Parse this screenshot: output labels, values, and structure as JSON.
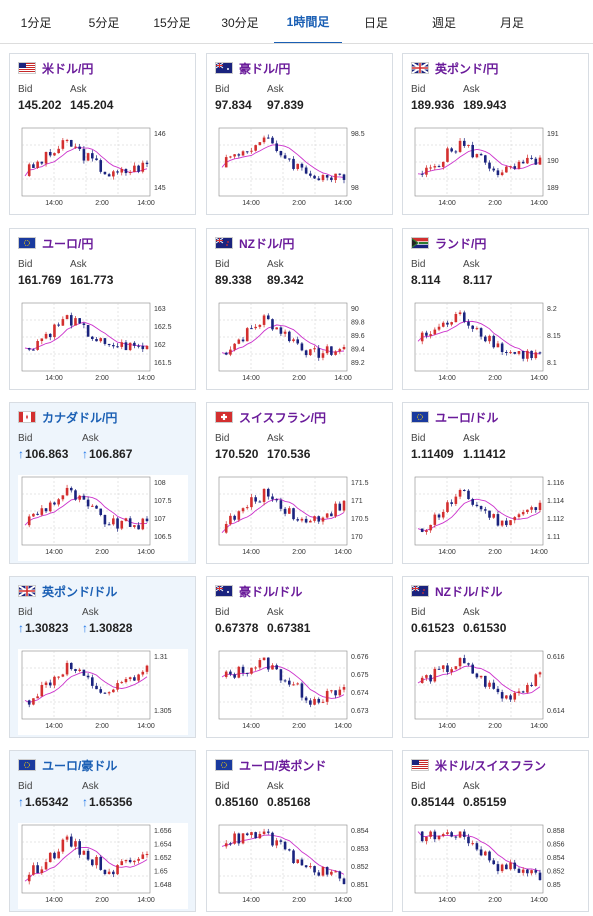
{
  "tabs": [
    {
      "label": "1分足",
      "active": false
    },
    {
      "label": "5分足",
      "active": false
    },
    {
      "label": "15分足",
      "active": false
    },
    {
      "label": "30分足",
      "active": false
    },
    {
      "label": "1時間足",
      "active": true
    },
    {
      "label": "日足",
      "active": false
    },
    {
      "label": "週足",
      "active": false
    },
    {
      "label": "月足",
      "active": false
    }
  ],
  "bid_label": "Bid",
  "ask_label": "Ask",
  "x_ticks": [
    "14:00",
    "2:00",
    "14:00"
  ],
  "colors": {
    "up": "#d32f2f",
    "down": "#1a237e",
    "ma": "#cc33cc",
    "ma2": "#29b6f6"
  },
  "cards": [
    {
      "pair": "米ドル/円",
      "flags": [
        "us",
        "jp"
      ],
      "bid": "145.202",
      "ask": "145.204",
      "arrow": false,
      "highlight": false,
      "y_ticks": [
        "146",
        "145"
      ],
      "chart_data": {
        "type": "candlestick",
        "start": 145.0,
        "end": 145.2,
        "peak": 145.9,
        "trough": 144.6
      }
    },
    {
      "pair": "豪ドル/円",
      "flags": [
        "au",
        "jp"
      ],
      "bid": "97.834",
      "ask": "97.839",
      "arrow": false,
      "highlight": false,
      "y_ticks": [
        "98.5",
        "98"
      ],
      "chart_data": {
        "type": "candlestick",
        "start": 98.1,
        "end": 97.83,
        "peak": 98.5,
        "trough": 97.7
      }
    },
    {
      "pair": "英ポンド/円",
      "flags": [
        "gb",
        "jp"
      ],
      "bid": "189.936",
      "ask": "189.943",
      "arrow": false,
      "highlight": false,
      "y_ticks": [
        "191",
        "190",
        "189"
      ],
      "chart_data": {
        "type": "candlestick",
        "start": 189.4,
        "end": 189.94,
        "peak": 190.6,
        "trough": 189.1
      }
    },
    {
      "pair": "ユーロ/円",
      "flags": [
        "eu",
        "jp"
      ],
      "bid": "161.769",
      "ask": "161.773",
      "arrow": false,
      "highlight": false,
      "y_ticks": [
        "163",
        "162.5",
        "162",
        "161.5"
      ],
      "chart_data": {
        "type": "candlestick",
        "start": 161.7,
        "end": 161.77,
        "peak": 162.6,
        "trough": 161.4
      }
    },
    {
      "pair": "NZドル/円",
      "flags": [
        "nz",
        "jp"
      ],
      "bid": "89.338",
      "ask": "89.342",
      "arrow": false,
      "highlight": false,
      "y_ticks": [
        "90",
        "89.8",
        "89.6",
        "89.4",
        "89.2"
      ],
      "chart_data": {
        "type": "candlestick",
        "start": 89.3,
        "end": 89.34,
        "peak": 89.7,
        "trough": 89.2
      }
    },
    {
      "pair": "ランド/円",
      "flags": [
        "za",
        "jp"
      ],
      "bid": "8.114",
      "ask": "8.117",
      "arrow": false,
      "highlight": false,
      "y_ticks": [
        "8.2",
        "8.15",
        "8.1"
      ],
      "chart_data": {
        "type": "candlestick",
        "start": 8.14,
        "end": 8.114,
        "peak": 8.19,
        "trough": 8.1
      }
    },
    {
      "pair": "カナダドル/円",
      "flags": [
        "ca",
        "jp"
      ],
      "bid": "106.863",
      "ask": "106.867",
      "arrow": true,
      "highlight": true,
      "y_ticks": [
        "108",
        "107.5",
        "107",
        "106.5"
      ],
      "chart_data": {
        "type": "candlestick",
        "start": 106.9,
        "end": 106.86,
        "peak": 107.6,
        "trough": 106.6
      }
    },
    {
      "pair": "スイスフラン/円",
      "flags": [
        "ch",
        "jp"
      ],
      "bid": "170.520",
      "ask": "170.536",
      "arrow": false,
      "highlight": false,
      "y_ticks": [
        "171.5",
        "171",
        "170.5",
        "170"
      ],
      "chart_data": {
        "type": "candlestick",
        "start": 170.1,
        "end": 170.52,
        "peak": 170.9,
        "trough": 169.9
      }
    },
    {
      "pair": "ユーロ/ドル",
      "flags": [
        "eu",
        "us"
      ],
      "bid": "1.11409",
      "ask": "1.11412",
      "arrow": false,
      "highlight": false,
      "y_ticks": [
        "1.116",
        "1.114",
        "1.112",
        "1.11"
      ],
      "chart_data": {
        "type": "candlestick",
        "start": 1.1125,
        "end": 1.1141,
        "peak": 1.1155,
        "trough": 1.1122
      }
    },
    {
      "pair": "英ポンド/ドル",
      "flags": [
        "gb",
        "us"
      ],
      "bid": "1.30823",
      "ask": "1.30828",
      "arrow": true,
      "highlight": true,
      "y_ticks": [
        "1.31",
        "1.305"
      ],
      "chart_data": {
        "type": "candlestick",
        "start": 1.3035,
        "end": 1.3082,
        "peak": 1.31,
        "trough": 1.3022
      }
    },
    {
      "pair": "豪ドル/ドル",
      "flags": [
        "au",
        "us"
      ],
      "bid": "0.67378",
      "ask": "0.67381",
      "arrow": false,
      "highlight": false,
      "y_ticks": [
        "0.676",
        "0.675",
        "0.674",
        "0.673"
      ],
      "chart_data": {
        "type": "candlestick",
        "start": 0.6745,
        "end": 0.6738,
        "peak": 0.6755,
        "trough": 0.6728
      }
    },
    {
      "pair": "NZドル/ドル",
      "flags": [
        "nz",
        "us"
      ],
      "bid": "0.61523",
      "ask": "0.61530",
      "arrow": false,
      "highlight": false,
      "y_ticks": [
        "0.616",
        "0.614"
      ],
      "chart_data": {
        "type": "candlestick",
        "start": 0.615,
        "end": 0.6152,
        "peak": 0.6162,
        "trough": 0.6135
      }
    },
    {
      "pair": "ユーロ/豪ドル",
      "flags": [
        "eu",
        "au"
      ],
      "bid": "1.65342",
      "ask": "1.65356",
      "arrow": true,
      "highlight": true,
      "y_ticks": [
        "1.656",
        "1.654",
        "1.652",
        "1.65",
        "1.648"
      ],
      "chart_data": {
        "type": "candlestick",
        "start": 1.649,
        "end": 1.6534,
        "peak": 1.6558,
        "trough": 1.6478
      }
    },
    {
      "pair": "ユーロ/英ポンド",
      "flags": [
        "eu",
        "gb"
      ],
      "bid": "0.85160",
      "ask": "0.85168",
      "arrow": false,
      "highlight": false,
      "y_ticks": [
        "0.854",
        "0.853",
        "0.852",
        "0.851"
      ],
      "chart_data": {
        "type": "candlestick",
        "start": 0.8535,
        "end": 0.8516,
        "peak": 0.854,
        "trough": 0.8512
      }
    },
    {
      "pair": "米ドル/スイスフラン",
      "flags": [
        "us",
        "ch"
      ],
      "bid": "0.85144",
      "ask": "0.85159",
      "arrow": false,
      "highlight": false,
      "y_ticks": [
        "0.858",
        "0.856",
        "0.854",
        "0.852",
        "0.85"
      ],
      "chart_data": {
        "type": "candlestick",
        "start": 0.8555,
        "end": 0.8514,
        "peak": 0.856,
        "trough": 0.8502
      }
    }
  ]
}
